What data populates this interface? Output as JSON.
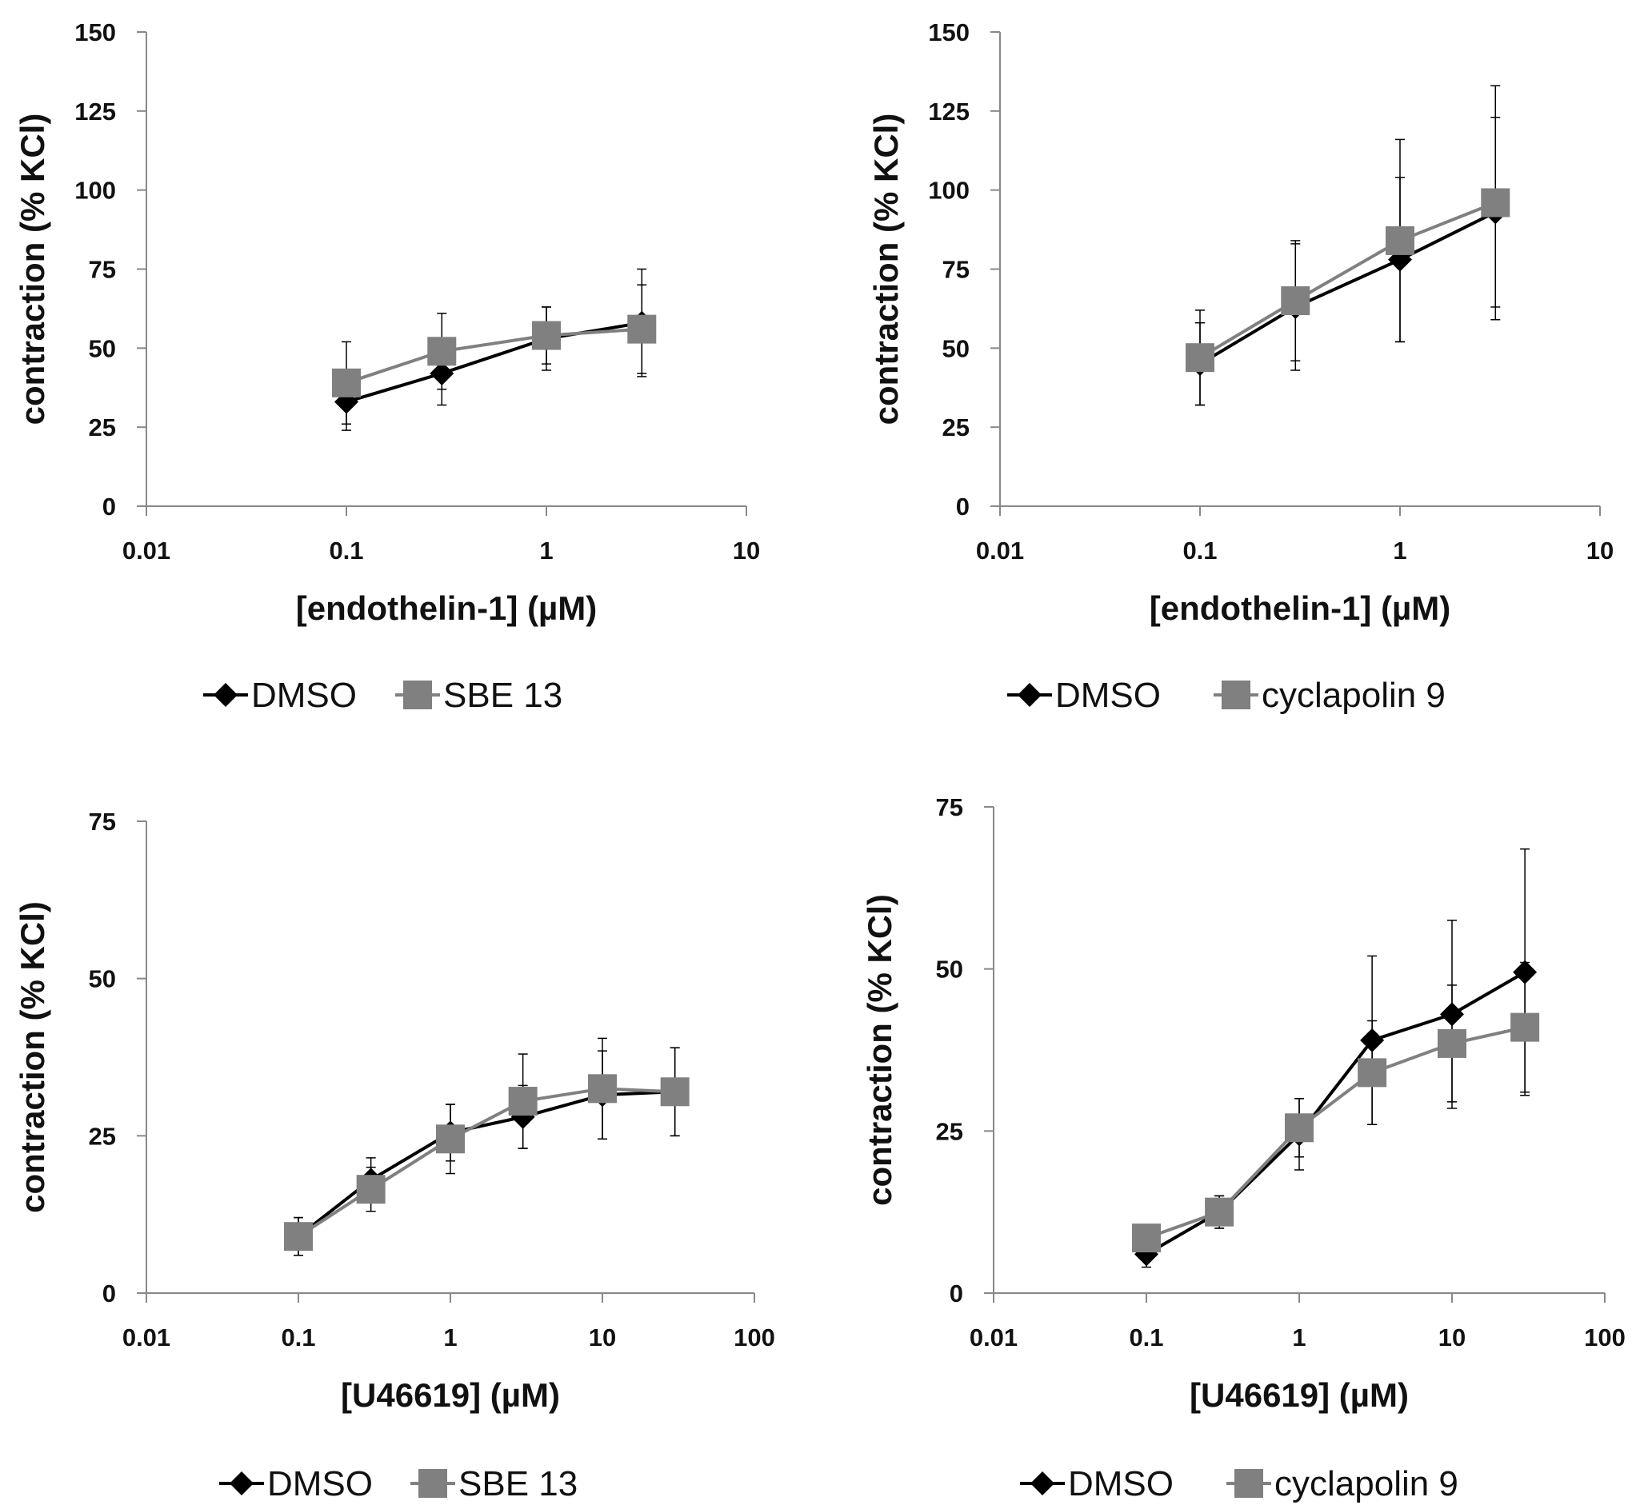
{
  "chart_data": [
    {
      "type": "line",
      "title": "",
      "xlabel": "[endothelin-1] (µM)",
      "ylabel": "contraction (% KCl)",
      "xscale": "log",
      "xlim": [
        0.01,
        10
      ],
      "ylim": [
        0,
        150
      ],
      "xticks": [
        0.01,
        0.1,
        1,
        10
      ],
      "xtick_labels": [
        "0.01",
        "0.1",
        "1",
        "10"
      ],
      "yticks": [
        0,
        25,
        50,
        75,
        100,
        125,
        150
      ],
      "ytick_labels": [
        "0",
        "25",
        "50",
        "75",
        "100",
        "125",
        "150"
      ],
      "legend_position": "bottom",
      "x": [
        0.1,
        0.3,
        1,
        3
      ],
      "series": [
        {
          "name": "DMSO",
          "marker": "diamond",
          "color": "#000000",
          "values": [
            33,
            42,
            53,
            58
          ],
          "errors": [
            9,
            10,
            10,
            17
          ]
        },
        {
          "name": "SBE 13",
          "marker": "square",
          "color": "#808080",
          "values": [
            39,
            49,
            54,
            56
          ],
          "errors": [
            13,
            12,
            9,
            14
          ]
        }
      ]
    },
    {
      "type": "line",
      "title": "",
      "xlabel": "[endothelin-1] (µM)",
      "ylabel": "contraction (% KCl)",
      "xscale": "log",
      "xlim": [
        0.01,
        10
      ],
      "ylim": [
        0,
        150
      ],
      "xticks": [
        0.01,
        0.1,
        1,
        10
      ],
      "xtick_labels": [
        "0.01",
        "0.1",
        "1",
        "10"
      ],
      "yticks": [
        0,
        25,
        50,
        75,
        100,
        125,
        150
      ],
      "ytick_labels": [
        "0",
        "25",
        "50",
        "75",
        "100",
        "125",
        "150"
      ],
      "legend_position": "bottom",
      "x": [
        0.1,
        0.3,
        1,
        3
      ],
      "series": [
        {
          "name": "DMSO",
          "marker": "diamond",
          "color": "#000000",
          "values": [
            45,
            63,
            78,
            93
          ],
          "errors": [
            13,
            20,
            26,
            30
          ]
        },
        {
          "name": "cyclapolin 9",
          "marker": "square",
          "color": "#808080",
          "values": [
            47,
            65,
            84,
            96
          ],
          "errors": [
            15,
            19,
            32,
            37
          ]
        }
      ]
    },
    {
      "type": "line",
      "title": "",
      "xlabel": "[U46619] (µM)",
      "ylabel": "contraction (% KCl)",
      "xscale": "log",
      "xlim": [
        0.01,
        100
      ],
      "ylim": [
        0,
        75
      ],
      "xticks": [
        0.01,
        0.1,
        1,
        10,
        100
      ],
      "xtick_labels": [
        "0.01",
        "0.1",
        "1",
        "10",
        "100"
      ],
      "yticks": [
        0,
        25,
        50,
        75
      ],
      "ytick_labels": [
        "0",
        "25",
        "50",
        "75"
      ],
      "legend_position": "bottom",
      "x": [
        0.1,
        0.3,
        1,
        3,
        10,
        30
      ],
      "series": [
        {
          "name": "DMSO",
          "marker": "diamond",
          "color": "#000000",
          "values": [
            9,
            18,
            25.5,
            28,
            31.5,
            32
          ],
          "errors": [
            3,
            3.5,
            4.5,
            5,
            7,
            7
          ]
        },
        {
          "name": "SBE 13",
          "marker": "square",
          "color": "#808080",
          "values": [
            9,
            16.5,
            24.5,
            30.5,
            32.5,
            32
          ],
          "errors": [
            3,
            3.5,
            5.5,
            7.5,
            8,
            7
          ]
        }
      ]
    },
    {
      "type": "line",
      "title": "",
      "xlabel": "[U46619] (µM)",
      "ylabel": "contraction (% KCl)",
      "xscale": "log",
      "xlim": [
        0.01,
        100
      ],
      "ylim": [
        0,
        75
      ],
      "xticks": [
        0.01,
        0.1,
        1,
        10,
        100
      ],
      "xtick_labels": [
        "0.01",
        "0.1",
        "1",
        "10",
        "100"
      ],
      "yticks": [
        0,
        25,
        50,
        75
      ],
      "ytick_labels": [
        "0",
        "25",
        "50",
        "75"
      ],
      "legend_position": "bottom",
      "x": [
        0.1,
        0.3,
        1,
        3,
        10,
        30
      ],
      "series": [
        {
          "name": "DMSO",
          "marker": "diamond",
          "color": "#000000",
          "values": [
            6,
            12.5,
            24.5,
            39,
            43,
            49.5
          ],
          "errors": [
            2,
            2.5,
            5.5,
            13,
            14.5,
            19
          ]
        },
        {
          "name": "cyclapolin 9",
          "marker": "square",
          "color": "#808080",
          "values": [
            8.5,
            12.5,
            25.5,
            34,
            38.5,
            41
          ],
          "errors": [
            2,
            2.5,
            4.5,
            8,
            9,
            10
          ]
        }
      ]
    }
  ]
}
